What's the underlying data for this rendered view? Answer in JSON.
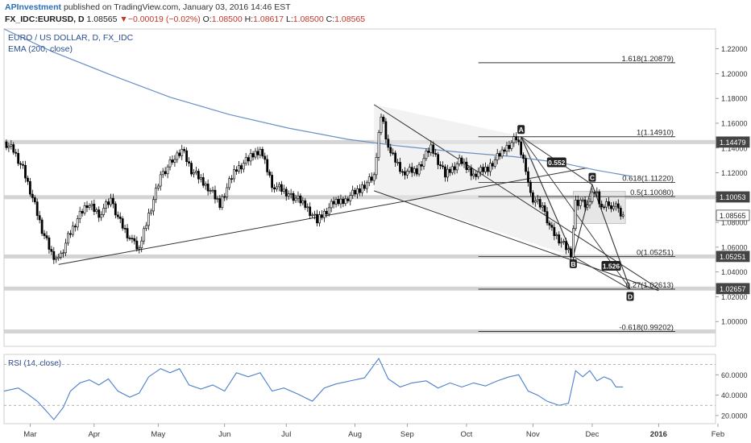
{
  "header": {
    "author": "APInvestment",
    "published_text": "published on TradingView.com, January 03, 2016 14:46 EST",
    "symbol": "FX_IDC:EURUSD, D",
    "last": "1.08565",
    "arrow": "▼",
    "change": "−0.00019 (−0.02%)",
    "o_label": "O:",
    "o": "1.08500",
    "h_label": "H:",
    "h": "1.08617",
    "l_label": "L:",
    "l": "1.08500",
    "c_label": "C:",
    "c": "1.08565"
  },
  "chart_data": {
    "type": "candlestick",
    "title": "EURO / US DOLLAR, D, FX_IDC",
    "indicator_label": "EMA (200, close)",
    "y_axis": {
      "ticks": [
        "1.22000",
        "1.20000",
        "1.18000",
        "1.16000",
        "1.14000",
        "1.12000",
        "1.10000",
        "1.08000",
        "1.06000",
        "1.04000",
        "1.02000",
        "1.00000"
      ],
      "tick_values": [
        1.22,
        1.2,
        1.18,
        1.16,
        1.14,
        1.12,
        1.1,
        1.08,
        1.06,
        1.04,
        1.02,
        1.0
      ],
      "ylim": [
        0.98,
        1.236
      ]
    },
    "x_axis": {
      "labels": [
        "Mar",
        "Apr",
        "May",
        "Jun",
        "Jul",
        "Aug",
        "Sep",
        "Oct",
        "Nov",
        "Dec",
        "2016",
        "Feb"
      ],
      "bold_index": 10
    },
    "price_badges": [
      {
        "label": "1.14479",
        "value": 1.14479,
        "color": "#444444"
      },
      {
        "label": "1.10053",
        "value": 1.10053,
        "color": "#444444"
      },
      {
        "label": "1.08565",
        "value": 1.08565,
        "color": "#ffffff",
        "text_color": "#222222"
      },
      {
        "label": "1.05251",
        "value": 1.05251,
        "color": "#444444"
      },
      {
        "label": "1.02657",
        "value": 1.02657,
        "color": "#444444"
      }
    ],
    "fib_levels": [
      {
        "label": "1.618(1.20879)",
        "value": 1.20879
      },
      {
        "label": "1(1.14910)",
        "value": 1.1491
      },
      {
        "label": "0.618(1.11220)",
        "value": 1.1122
      },
      {
        "label": "0.5(1.10080)",
        "value": 1.1008
      },
      {
        "label": "0(1.05251)",
        "value": 1.05251
      },
      {
        "label": "0.27(1.02613)",
        "value": 1.02613
      },
      {
        "label": "-0.618(0.99202)",
        "value": 0.99202
      }
    ],
    "horizontal_zones": [
      1.1448,
      1.1003,
      1.0525,
      1.0266,
      0.992
    ],
    "pattern_points": [
      {
        "label": "A",
        "x": 218,
        "value": 1.1491
      },
      {
        "label": "B",
        "x": 240,
        "value": 1.0525
      },
      {
        "label": "C",
        "x": 248,
        "value": 1.1105
      },
      {
        "label": "D",
        "x": 264,
        "value": 1.0261
      }
    ],
    "ratio_labels": [
      {
        "label": "0.552",
        "x": 233,
        "value": 1.1285
      },
      {
        "label": "1.526",
        "x": 256,
        "value": 1.045
      }
    ],
    "price_series": [
      {
        "x": 0,
        "value": 1.145
      },
      {
        "x": 4,
        "value": 1.138
      },
      {
        "x": 8,
        "value": 1.123
      },
      {
        "x": 12,
        "value": 1.1
      },
      {
        "x": 16,
        "value": 1.074
      },
      {
        "x": 20,
        "value": 1.055
      },
      {
        "x": 23,
        "value": 1.049
      },
      {
        "x": 27,
        "value": 1.068
      },
      {
        "x": 31,
        "value": 1.083
      },
      {
        "x": 35,
        "value": 1.095
      },
      {
        "x": 40,
        "value": 1.087
      },
      {
        "x": 45,
        "value": 1.098
      },
      {
        "x": 49,
        "value": 1.08
      },
      {
        "x": 54,
        "value": 1.064
      },
      {
        "x": 57,
        "value": 1.058
      },
      {
        "x": 61,
        "value": 1.086
      },
      {
        "x": 66,
        "value": 1.117
      },
      {
        "x": 71,
        "value": 1.13
      },
      {
        "x": 75,
        "value": 1.139
      },
      {
        "x": 79,
        "value": 1.122
      },
      {
        "x": 85,
        "value": 1.111
      },
      {
        "x": 91,
        "value": 1.095
      },
      {
        "x": 97,
        "value": 1.121
      },
      {
        "x": 103,
        "value": 1.131
      },
      {
        "x": 108,
        "value": 1.139
      },
      {
        "x": 113,
        "value": 1.111
      },
      {
        "x": 120,
        "value": 1.103
      },
      {
        "x": 126,
        "value": 1.096
      },
      {
        "x": 132,
        "value": 1.081
      },
      {
        "x": 138,
        "value": 1.094
      },
      {
        "x": 144,
        "value": 1.099
      },
      {
        "x": 150,
        "value": 1.107
      },
      {
        "x": 156,
        "value": 1.117
      },
      {
        "x": 159,
        "value": 1.168
      },
      {
        "x": 162,
        "value": 1.139
      },
      {
        "x": 168,
        "value": 1.121
      },
      {
        "x": 174,
        "value": 1.122
      },
      {
        "x": 180,
        "value": 1.141
      },
      {
        "x": 186,
        "value": 1.118
      },
      {
        "x": 192,
        "value": 1.129
      },
      {
        "x": 198,
        "value": 1.119
      },
      {
        "x": 204,
        "value": 1.124
      },
      {
        "x": 210,
        "value": 1.137
      },
      {
        "x": 216,
        "value": 1.148
      },
      {
        "x": 220,
        "value": 1.124
      },
      {
        "x": 222,
        "value": 1.101
      },
      {
        "x": 227,
        "value": 1.092
      },
      {
        "x": 231,
        "value": 1.073
      },
      {
        "x": 235,
        "value": 1.064
      },
      {
        "x": 239,
        "value": 1.055
      },
      {
        "x": 241,
        "value": 1.095
      },
      {
        "x": 243,
        "value": 1.098
      },
      {
        "x": 246,
        "value": 1.094
      },
      {
        "x": 249,
        "value": 1.107
      },
      {
        "x": 252,
        "value": 1.091
      },
      {
        "x": 255,
        "value": 1.095
      },
      {
        "x": 258,
        "value": 1.092
      },
      {
        "x": 261,
        "value": 1.086
      }
    ],
    "ema_series": [
      {
        "x": 0,
        "value": 1.236
      },
      {
        "x": 20,
        "value": 1.218
      },
      {
        "x": 45,
        "value": 1.199
      },
      {
        "x": 70,
        "value": 1.181
      },
      {
        "x": 95,
        "value": 1.167
      },
      {
        "x": 120,
        "value": 1.156
      },
      {
        "x": 145,
        "value": 1.147
      },
      {
        "x": 165,
        "value": 1.142
      },
      {
        "x": 190,
        "value": 1.137
      },
      {
        "x": 215,
        "value": 1.133
      },
      {
        "x": 235,
        "value": 1.128
      },
      {
        "x": 250,
        "value": 1.122
      },
      {
        "x": 265,
        "value": 1.117
      }
    ],
    "rsi": {
      "label": "RSI (14, close)",
      "ticks": [
        "60.0000",
        "40.0000",
        "20.0000"
      ],
      "tick_values": [
        60,
        40,
        20
      ],
      "ylim": [
        12,
        80
      ],
      "bands": [
        70,
        30
      ],
      "series": [
        {
          "x": 0,
          "value": 44
        },
        {
          "x": 6,
          "value": 47
        },
        {
          "x": 10,
          "value": 41
        },
        {
          "x": 14,
          "value": 34
        },
        {
          "x": 18,
          "value": 24
        },
        {
          "x": 21,
          "value": 16
        },
        {
          "x": 25,
          "value": 28
        },
        {
          "x": 28,
          "value": 44
        },
        {
          "x": 32,
          "value": 52
        },
        {
          "x": 36,
          "value": 55
        },
        {
          "x": 40,
          "value": 50
        },
        {
          "x": 44,
          "value": 56
        },
        {
          "x": 48,
          "value": 44
        },
        {
          "x": 53,
          "value": 38
        },
        {
          "x": 57,
          "value": 42
        },
        {
          "x": 61,
          "value": 58
        },
        {
          "x": 66,
          "value": 66
        },
        {
          "x": 70,
          "value": 62
        },
        {
          "x": 74,
          "value": 66
        },
        {
          "x": 78,
          "value": 50
        },
        {
          "x": 83,
          "value": 46
        },
        {
          "x": 88,
          "value": 50
        },
        {
          "x": 93,
          "value": 44
        },
        {
          "x": 98,
          "value": 62
        },
        {
          "x": 103,
          "value": 58
        },
        {
          "x": 108,
          "value": 62
        },
        {
          "x": 113,
          "value": 44
        },
        {
          "x": 118,
          "value": 47
        },
        {
          "x": 124,
          "value": 41
        },
        {
          "x": 130,
          "value": 34
        },
        {
          "x": 135,
          "value": 47
        },
        {
          "x": 140,
          "value": 51
        },
        {
          "x": 146,
          "value": 54
        },
        {
          "x": 152,
          "value": 57
        },
        {
          "x": 158,
          "value": 76
        },
        {
          "x": 162,
          "value": 56
        },
        {
          "x": 167,
          "value": 48
        },
        {
          "x": 172,
          "value": 52
        },
        {
          "x": 178,
          "value": 54
        },
        {
          "x": 183,
          "value": 47
        },
        {
          "x": 188,
          "value": 52
        },
        {
          "x": 193,
          "value": 48
        },
        {
          "x": 198,
          "value": 52
        },
        {
          "x": 203,
          "value": 49
        },
        {
          "x": 208,
          "value": 54
        },
        {
          "x": 213,
          "value": 58
        },
        {
          "x": 217,
          "value": 60
        },
        {
          "x": 221,
          "value": 44
        },
        {
          "x": 225,
          "value": 40
        },
        {
          "x": 229,
          "value": 34
        },
        {
          "x": 234,
          "value": 30
        },
        {
          "x": 238,
          "value": 32
        },
        {
          "x": 241,
          "value": 64
        },
        {
          "x": 244,
          "value": 58
        },
        {
          "x": 247,
          "value": 64
        },
        {
          "x": 250,
          "value": 54
        },
        {
          "x": 253,
          "value": 58
        },
        {
          "x": 256,
          "value": 55
        },
        {
          "x": 258,
          "value": 48
        },
        {
          "x": 261,
          "value": 48
        }
      ]
    },
    "x_range": [
      0,
      300
    ]
  }
}
